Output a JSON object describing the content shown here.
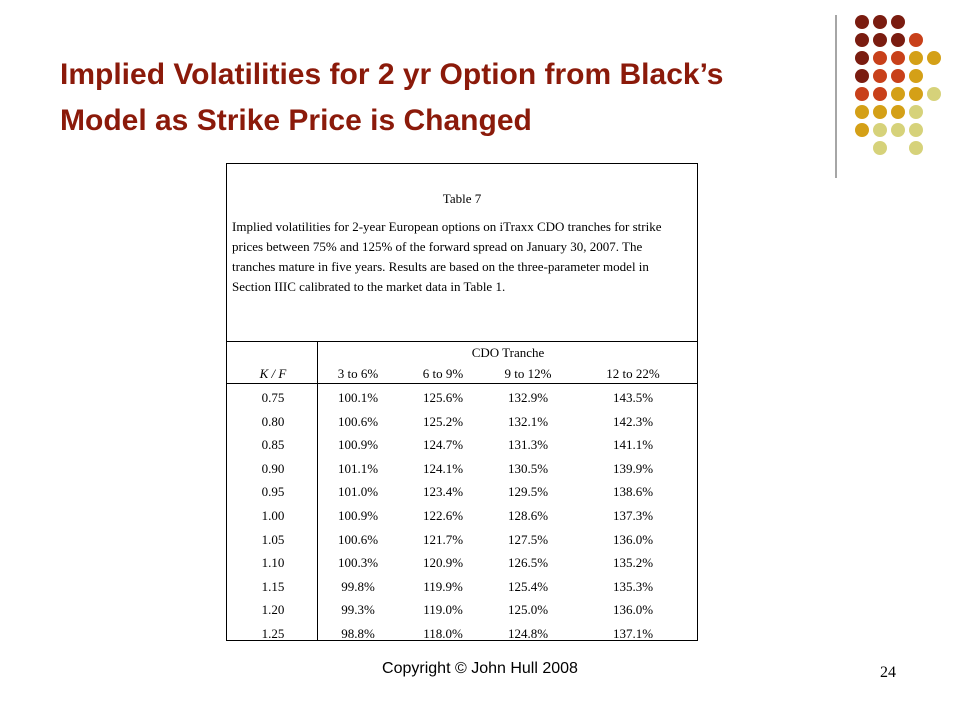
{
  "header": {
    "title": "Implied Volatilities for 2 yr Option from Black’s Model as Strike Price is Changed"
  },
  "table": {
    "caption": "Table 7",
    "description": "Implied volatilities for 2-year European options on iTraxx CDO tranches for strike prices between 75% and 125% of the forward spread on January 30, 2007. The tranches mature in five years. Results are based on the three-parameter model in Section IIIC calibrated to the market data in Table 1.",
    "group_header": "CDO Tranche",
    "columns": [
      "K / F",
      "3 to 6%",
      "6 to 9%",
      "9 to 12%",
      "12 to 22%"
    ],
    "rows": [
      [
        "0.75",
        "100.1%",
        "125.6%",
        "132.9%",
        "143.5%"
      ],
      [
        "0.80",
        "100.6%",
        "125.2%",
        "132.1%",
        "142.3%"
      ],
      [
        "0.85",
        "100.9%",
        "124.7%",
        "131.3%",
        "141.1%"
      ],
      [
        "0.90",
        "101.1%",
        "124.1%",
        "130.5%",
        "139.9%"
      ],
      [
        "0.95",
        "101.0%",
        "123.4%",
        "129.5%",
        "138.6%"
      ],
      [
        "1.00",
        "100.9%",
        "122.6%",
        "128.6%",
        "137.3%"
      ],
      [
        "1.05",
        "100.6%",
        "121.7%",
        "127.5%",
        "136.0%"
      ],
      [
        "1.10",
        "100.3%",
        "120.9%",
        "126.5%",
        "135.2%"
      ],
      [
        "1.15",
        "99.8%",
        "119.9%",
        "125.4%",
        "135.3%"
      ],
      [
        "1.20",
        "99.3%",
        "119.0%",
        "125.0%",
        "136.0%"
      ],
      [
        "1.25",
        "98.8%",
        "118.0%",
        "124.8%",
        "137.1%"
      ]
    ]
  },
  "footer": {
    "copyright": "Copyright © John Hull 2008",
    "page_number": "24"
  }
}
